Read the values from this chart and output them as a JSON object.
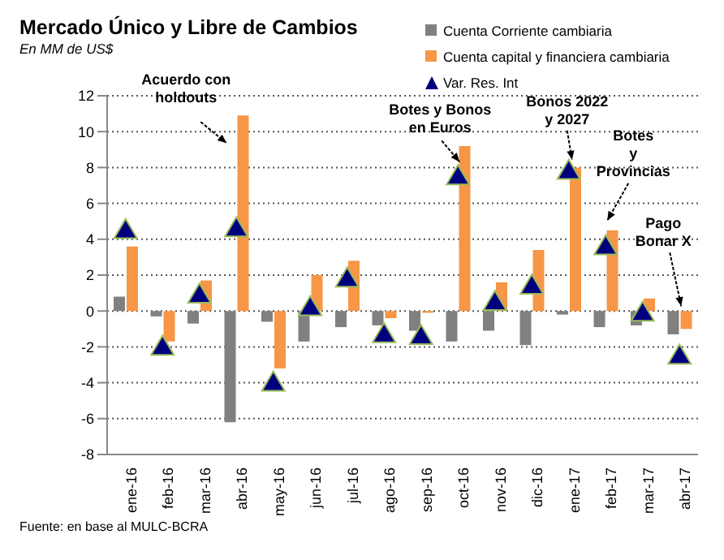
{
  "chart_data": {
    "type": "bar",
    "title": "Mercado Único y Libre de Cambios",
    "subtitle": "En MM de US$",
    "categories": [
      "ene-16",
      "feb-16",
      "mar-16",
      "abr-16",
      "may-16",
      "jun-16",
      "jul-16",
      "ago-16",
      "sep-16",
      "oct-16",
      "nov-16",
      "dic-16",
      "ene-17",
      "feb-17",
      "mar-17",
      "abr-17"
    ],
    "series": [
      {
        "name": "Cuenta Corriente cambiaria",
        "type": "bar",
        "color": "#808080",
        "values": [
          0.8,
          -0.3,
          -0.7,
          -6.2,
          -0.6,
          -1.7,
          -0.9,
          -0.8,
          -1.1,
          -1.7,
          -1.1,
          -1.9,
          -0.2,
          -0.9,
          -0.8,
          -1.3
        ]
      },
      {
        "name": "Cuenta capital y financiera cambiaria",
        "type": "bar",
        "color": "#f79646",
        "values": [
          3.6,
          -1.7,
          1.7,
          10.9,
          -3.2,
          2.0,
          2.8,
          -0.4,
          -0.1,
          9.2,
          1.6,
          3.4,
          8.0,
          4.5,
          0.7,
          -1.0
        ]
      },
      {
        "name": "Var. Res. Int",
        "type": "scatter",
        "color": "#00007f",
        "values": [
          4.5,
          -2.0,
          0.9,
          4.6,
          -4.0,
          0.2,
          1.8,
          -1.3,
          -1.4,
          7.5,
          0.5,
          1.4,
          7.8,
          3.6,
          -0.1,
          -2.5
        ]
      }
    ],
    "marker": "triangle",
    "ylim": [
      -8,
      12
    ],
    "yticks": [
      -8,
      -6,
      -4,
      -2,
      0,
      2,
      4,
      6,
      8,
      10,
      12
    ],
    "grid": "y",
    "legend": "top right",
    "annotations": [
      {
        "text": "Acuerdo con\nholdouts",
        "x": "abr-16",
        "y": 10.9
      },
      {
        "text": "Botes y Bonos\nen Euros",
        "x": "oct-16",
        "y": 7.5
      },
      {
        "text": "Bonos 2022\ny 2027",
        "x": "ene-17",
        "y": 7.8
      },
      {
        "text": "Botes\ny\nProvincias",
        "x": "feb-17",
        "y": 4.5
      },
      {
        "text": "Pago\nBonar X",
        "x": "abr-17",
        "y": 0
      },
      "Fuente: en base al MULC-BCRA"
    ]
  }
}
